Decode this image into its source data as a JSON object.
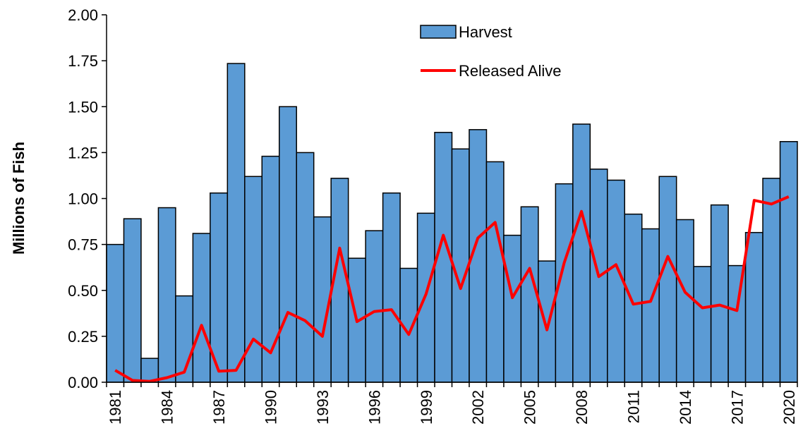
{
  "chart_data": {
    "type": "bar",
    "y_label": "Millions of Fish",
    "categories": [
      "1981",
      null,
      null,
      "1984",
      null,
      null,
      "1987",
      null,
      null,
      "1990",
      null,
      null,
      "1993",
      null,
      null,
      "1996",
      null,
      null,
      "1999",
      null,
      null,
      "2002",
      null,
      null,
      "2005",
      null,
      null,
      "2008",
      null,
      null,
      "2011",
      null,
      null,
      "2014",
      null,
      null,
      "2017",
      null,
      null,
      "2020"
    ],
    "series": [
      {
        "name": "Harvest",
        "type": "bar",
        "color": "#5b9bd5",
        "values": [
          0.75,
          0.89,
          0.13,
          0.95,
          0.47,
          0.81,
          1.03,
          1.735,
          1.12,
          1.23,
          1.5,
          1.25,
          0.9,
          1.11,
          0.675,
          0.825,
          1.03,
          0.62,
          0.92,
          1.36,
          1.27,
          1.375,
          1.2,
          0.8,
          0.955,
          0.66,
          1.08,
          1.405,
          1.16,
          1.1,
          0.915,
          0.835,
          1.12,
          0.885,
          0.63,
          0.965,
          0.635,
          0.815,
          1.11,
          1.31
        ]
      },
      {
        "name": "Released Alive",
        "type": "line",
        "color": "#ff0000",
        "values": [
          0.065,
          0.01,
          0.005,
          0.025,
          0.055,
          0.31,
          0.06,
          0.065,
          0.235,
          0.16,
          0.38,
          0.335,
          0.25,
          0.73,
          0.33,
          0.385,
          0.395,
          0.26,
          0.48,
          0.8,
          0.51,
          0.785,
          0.87,
          0.46,
          0.62,
          0.285,
          0.65,
          0.93,
          0.575,
          0.64,
          0.425,
          0.44,
          0.685,
          0.49,
          0.405,
          0.42,
          0.39,
          0.99,
          0.97,
          1.01
        ]
      }
    ],
    "ylim": [
      0,
      2
    ],
    "yticks": [
      {
        "value": 0,
        "label": "0.00"
      },
      {
        "value": 0.25,
        "label": "0.25"
      },
      {
        "value": 0.5,
        "label": "0.50"
      },
      {
        "value": 0.75,
        "label": "0.75"
      },
      {
        "value": 1,
        "label": "1.00"
      },
      {
        "value": 1.25,
        "label": "1.25"
      },
      {
        "value": 1.5,
        "label": "1.50"
      },
      {
        "value": 1.75,
        "label": "1.75"
      },
      {
        "value": 2,
        "label": "2.00"
      }
    ],
    "grid": false
  }
}
